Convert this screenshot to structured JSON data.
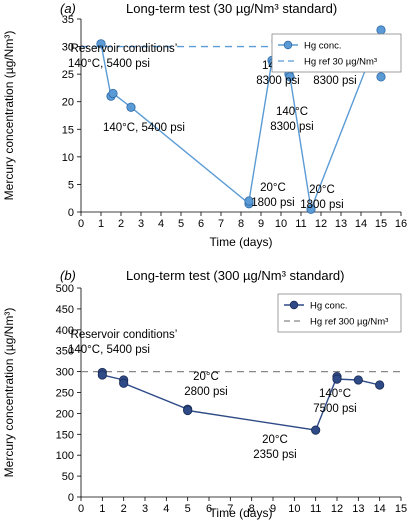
{
  "chart_data": [
    {
      "type": "line",
      "panel_label": "(a)",
      "title": "Long-term test (30 µg/Nm³ standard)",
      "xlabel": "Time (days)",
      "ylabel": "Mercury concentration (µg/Nm³)",
      "xlim": [
        0,
        16
      ],
      "ylim": [
        0,
        35
      ],
      "xticks": [
        0,
        1,
        2,
        3,
        4,
        5,
        6,
        7,
        8,
        9,
        10,
        11,
        12,
        13,
        14,
        15,
        16
      ],
      "yticks": [
        0,
        5,
        10,
        15,
        20,
        25,
        30,
        35
      ],
      "legend_position": "top-right",
      "color": "#5b9bd5",
      "series": [
        {
          "name": "Hg conc.",
          "x": [
            1,
            1.5,
            1.6,
            2.5,
            8.4,
            8.4,
            9.55,
            9.6,
            9.75,
            10.4,
            10.45,
            11.5,
            15,
            15,
            15
          ],
          "y": [
            30.5,
            21,
            21.5,
            19,
            1.5,
            2,
            27.5,
            27,
            31,
            25,
            24.5,
            0.5,
            33,
            28.5,
            24.5
          ]
        }
      ],
      "reference": {
        "name": "Hg ref 30 µg/Nm³",
        "y": 30
      },
      "annotations": [
        {
          "lines": [
            "‘Reservoir conditions’",
            "140°C, 5400 psi"
          ]
        },
        {
          "lines": [
            "140°C, 5400 psi"
          ]
        },
        {
          "lines": [
            "20°C",
            "1800 psi"
          ]
        },
        {
          "lines": [
            "140°C",
            "8300 psi"
          ]
        },
        {
          "lines": [
            "140°C",
            "8300 psi"
          ]
        },
        {
          "lines": [
            "20°C",
            "1800 psi"
          ]
        },
        {
          "lines": [
            "140°C",
            "8300 psi"
          ]
        }
      ]
    },
    {
      "type": "line",
      "panel_label": "(b)",
      "title": "Long-term test (300 µg/Nm³ standard)",
      "xlabel": "Time (days)",
      "ylabel": "Mercury concentration (µg/Nm³)",
      "xlim": [
        0,
        15
      ],
      "ylim": [
        0,
        500
      ],
      "xticks": [
        0,
        1,
        2,
        3,
        4,
        5,
        6,
        7,
        8,
        9,
        10,
        11,
        12,
        13,
        14,
        15
      ],
      "yticks": [
        0,
        50,
        100,
        150,
        200,
        250,
        300,
        350,
        400,
        450,
        500
      ],
      "legend_position": "top-right",
      "color": "#2e4a87",
      "series": [
        {
          "name": "Hg conc.",
          "x": [
            1,
            1,
            2,
            2,
            5,
            5,
            11,
            12,
            12,
            13,
            14
          ],
          "y": [
            298,
            292,
            280,
            272,
            210,
            207,
            160,
            288,
            282,
            280,
            268
          ]
        }
      ],
      "reference": {
        "name": "Hg ref 300 µg/Nm³",
        "y": 300
      },
      "annotations": [
        {
          "lines": [
            "‘Reservoir conditions’",
            "140°C, 5400 psi"
          ]
        },
        {
          "lines": [
            "20°C",
            "2800 psi"
          ]
        },
        {
          "lines": [
            "20°C",
            "2350 psi"
          ]
        },
        {
          "lines": [
            "140°C",
            "7500 psi"
          ]
        }
      ]
    }
  ]
}
